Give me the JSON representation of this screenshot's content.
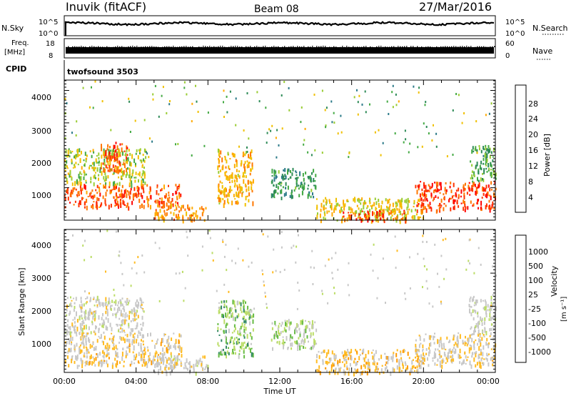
{
  "header": {
    "station": "Inuvik (fitACF)",
    "beam": "Beam 08",
    "date": "27/Mar/2016"
  },
  "top_panels": {
    "nsky_label": "N.Sky",
    "nsky_ticks": [
      "10^5",
      "10^0"
    ],
    "nsearch_label": "N.Search",
    "nsearch_ticks": [
      "10^5",
      "10^0"
    ],
    "freq_label": "Freq.",
    "freq_unit": "[MHz]",
    "freq_ticks": [
      "18",
      "8"
    ],
    "nave_label": "Nave",
    "nave_ticks": [
      "60",
      "0"
    ],
    "cpid_label": "CPID",
    "cpid_value": "twofsound 3503"
  },
  "power_colorbar": {
    "label": "Power [dB]",
    "ticks": [
      "28",
      "24",
      "20",
      "16",
      "12",
      "8",
      "4"
    ],
    "colors": [
      "#ff0000",
      "#ff3300",
      "#ff7700",
      "#ffaa00",
      "#f0c000",
      "#99cc33",
      "#44aa44",
      "#2e8b57",
      "#2b7a88",
      "#2233aa",
      "#0000ff"
    ]
  },
  "velocity_colorbar": {
    "label": "Velocity",
    "unit": "[m s⁻¹]",
    "ticks": [
      "1000",
      "500",
      "100",
      "25",
      "-25",
      "-100",
      "-500",
      "-1000"
    ],
    "colors": [
      "#2244cc",
      "#2266aa",
      "#338866",
      "#66bb44",
      "#bbdd66",
      "#c8c8c8",
      "#c8c8c8",
      "#ffbb22",
      "#ff9900",
      "#ff6600",
      "#ff3300",
      "#ee0000"
    ]
  },
  "axes": {
    "ylabel": "Slant Range [km]",
    "xlabel": "Time UT",
    "yticks": [
      "4000",
      "3000",
      "2000",
      "1000"
    ],
    "xticks": [
      "00:00",
      "04:00",
      "08:00",
      "12:00",
      "16:00",
      "20:00",
      "00:00"
    ]
  },
  "chart_data": [
    {
      "type": "heatmap",
      "title": "",
      "xlabel": "",
      "ylabel": "Slant Range [km]",
      "colorbar": "Power [dB]",
      "xlim": [
        "00:00",
        "24:00"
      ],
      "ylim": [
        180,
        4500
      ],
      "clim": [
        0,
        30
      ],
      "regions": [
        {
          "t0": 0.0,
          "t1": 6.5,
          "r0": 600,
          "r1": 1300,
          "power": 26
        },
        {
          "t0": 0.0,
          "t1": 4.5,
          "r0": 1300,
          "r1": 2400,
          "power": 16
        },
        {
          "t0": 2.0,
          "t1": 3.5,
          "r0": 1700,
          "r1": 2600,
          "power": 26
        },
        {
          "t0": 5.0,
          "t1": 8.0,
          "r0": 200,
          "r1": 700,
          "power": 22
        },
        {
          "t0": 8.5,
          "t1": 10.5,
          "r0": 700,
          "r1": 2400,
          "power": 20
        },
        {
          "t0": 11.5,
          "t1": 14.0,
          "r0": 900,
          "r1": 1800,
          "power": 10
        },
        {
          "t0": 14.0,
          "t1": 20.0,
          "r0": 200,
          "r1": 900,
          "power": 18
        },
        {
          "t0": 15.5,
          "t1": 19.0,
          "r0": 200,
          "r1": 500,
          "power": 27
        },
        {
          "t0": 19.5,
          "t1": 24.0,
          "r0": 500,
          "r1": 1400,
          "power": 27
        },
        {
          "t0": 22.5,
          "t1": 24.0,
          "r0": 1400,
          "r1": 2500,
          "power": 12
        }
      ]
    },
    {
      "type": "heatmap",
      "title": "",
      "xlabel": "Time UT",
      "ylabel": "Slant Range [km]",
      "colorbar": "Velocity [m s⁻¹]",
      "xlim": [
        "00:00",
        "24:00"
      ],
      "ylim": [
        180,
        4500
      ],
      "clim": [
        -1000,
        1000
      ],
      "regions": [
        {
          "t0": 0.0,
          "t1": 6.5,
          "r0": 400,
          "r1": 1400,
          "velocity": -150
        },
        {
          "t0": 0.0,
          "t1": 4.5,
          "r0": 1400,
          "r1": 2500,
          "velocity": 20
        },
        {
          "t0": 5.0,
          "t1": 8.0,
          "r0": 200,
          "r1": 700,
          "velocity": 0
        },
        {
          "t0": 8.5,
          "t1": 10.5,
          "r0": 700,
          "r1": 2400,
          "velocity": 400
        },
        {
          "t0": 11.5,
          "t1": 14.0,
          "r0": 900,
          "r1": 1800,
          "velocity": 200
        },
        {
          "t0": 14.0,
          "t1": 20.0,
          "r0": 200,
          "r1": 900,
          "velocity": -200
        },
        {
          "t0": 19.5,
          "t1": 24.0,
          "r0": 400,
          "r1": 1400,
          "velocity": -120
        },
        {
          "t0": 22.5,
          "t1": 24.0,
          "r0": 1400,
          "r1": 2500,
          "velocity": 80
        }
      ]
    }
  ]
}
